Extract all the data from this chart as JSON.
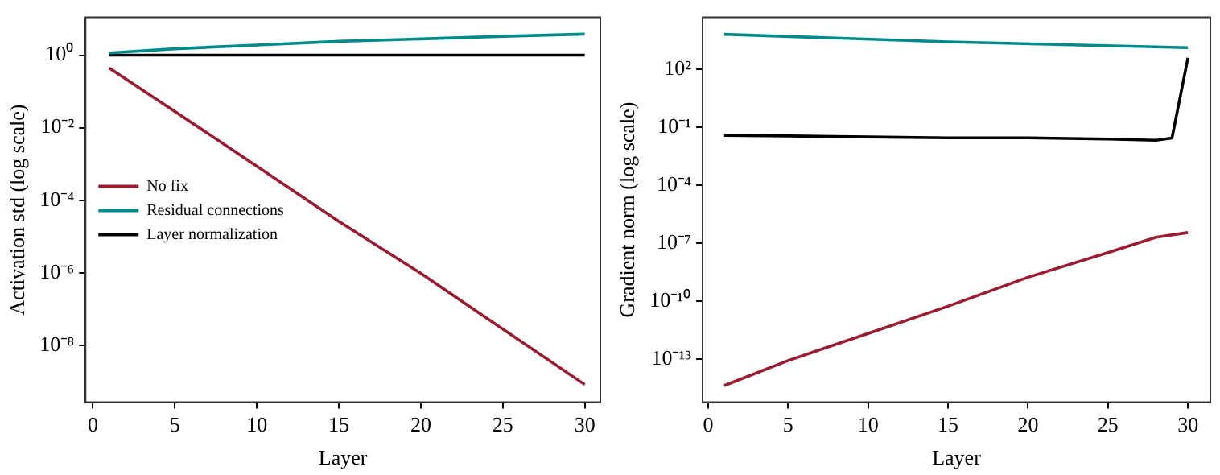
{
  "chart_data": [
    {
      "type": "line",
      "xlabel": "Layer",
      "ylabel": "Activation std (log scale)",
      "log": "y",
      "grid": false,
      "legend": "left",
      "line_style": "solid",
      "marker": "none",
      "xlim": [
        -0.45,
        30.95
      ],
      "xticks": [
        0,
        5,
        10,
        15,
        20,
        25,
        30
      ],
      "ylim": [
        2.7e-10,
        11
      ],
      "yticks": [
        {
          "value": 1,
          "label": "10⁰"
        },
        {
          "value": 0.01,
          "label": "10⁻²"
        },
        {
          "value": 0.0001,
          "label": "10⁻⁴"
        },
        {
          "value": 1e-06,
          "label": "10⁻⁶"
        },
        {
          "value": 1e-08,
          "label": "10⁻⁸"
        }
      ],
      "series": [
        {
          "name": "No fix",
          "color": "#9b1b30",
          "x": [
            1,
            5,
            10,
            15,
            20,
            25,
            30
          ],
          "values": [
            0.44,
            0.028,
            0.00087,
            2.6e-05,
            9.7e-07,
            2.8e-08,
            8.3e-10
          ]
        },
        {
          "name": "Residual connections",
          "color": "#008b8b",
          "x": [
            1,
            5,
            10,
            15,
            20,
            25,
            30
          ],
          "values": [
            1.15,
            1.5,
            1.9,
            2.4,
            2.8,
            3.3,
            3.8
          ]
        },
        {
          "name": "Layer normalization",
          "color": "#000000",
          "x": [
            1,
            30
          ],
          "values": [
            1,
            1
          ]
        }
      ]
    },
    {
      "type": "line",
      "xlabel": "Layer",
      "ylabel": "Gradient norm (log scale)",
      "log": "y",
      "grid": false,
      "legend": false,
      "line_style": "solid",
      "marker": "none",
      "xlim": [
        -0.35,
        31.4
      ],
      "xticks": [
        0,
        5,
        10,
        15,
        20,
        25,
        30
      ],
      "ylim": [
        5.8e-16,
        48000
      ],
      "yticks": [
        {
          "value": 100,
          "label": "10²"
        },
        {
          "value": 0.1,
          "label": "10⁻¹"
        },
        {
          "value": 0.0001,
          "label": "10⁻⁴"
        },
        {
          "value": 1e-07,
          "label": "10⁻⁷"
        },
        {
          "value": 1e-10,
          "label": "10⁻¹⁰"
        },
        {
          "value": 1e-13,
          "label": "10⁻¹³"
        }
      ],
      "series": [
        {
          "color": "#9b1b30",
          "x": [
            1,
            5,
            10,
            15,
            20,
            25,
            28,
            30
          ],
          "values": [
            4.2e-15,
            8.3e-14,
            2.1e-12,
            5.4e-11,
            1.7e-09,
            3.2e-08,
            2e-07,
            3.5e-07
          ]
        },
        {
          "color": "#008b8b",
          "x": [
            1,
            15,
            30
          ],
          "values": [
            6400,
            2600,
            1300
          ]
        },
        {
          "color": "#000000",
          "x": [
            1,
            5,
            10,
            15,
            20,
            25,
            28,
            29,
            30
          ],
          "values": [
            0.037,
            0.035,
            0.031,
            0.028,
            0.028,
            0.024,
            0.021,
            0.027,
            390
          ]
        }
      ]
    }
  ]
}
